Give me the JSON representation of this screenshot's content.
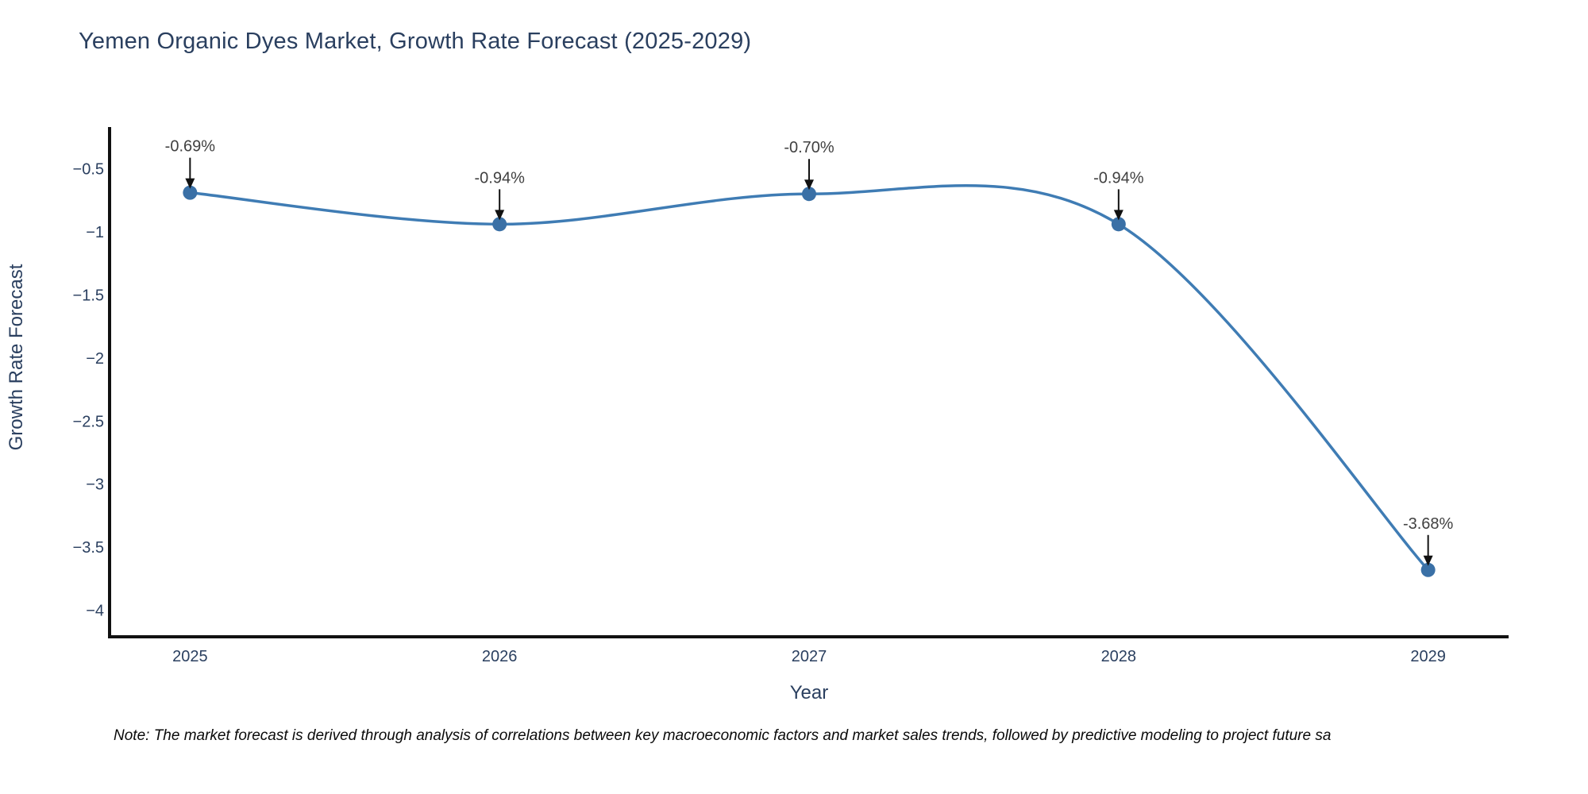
{
  "page": {
    "note": "Note: The market forecast is derived through analysis of correlations between key macroeconomic factors and market sales trends, followed by predictive modeling to project future sa"
  },
  "chart_data": {
    "type": "line",
    "title": "Yemen Organic Dyes Market, Growth Rate Forecast (2025-2029)",
    "xlabel": "Year",
    "ylabel": "Growth Rate Forecast",
    "x": [
      2025,
      2026,
      2027,
      2028,
      2029
    ],
    "series": [
      {
        "name": "Growth Rate Forecast",
        "values": [
          -0.69,
          -0.94,
          -0.7,
          -0.94,
          -3.68
        ]
      }
    ],
    "point_labels": [
      "-0.69%",
      "-0.94%",
      "-0.70%",
      "-0.94%",
      "-3.68%"
    ],
    "x_tick_labels": [
      "2025",
      "2026",
      "2027",
      "2028",
      "2029"
    ],
    "y_ticks": [
      -0.5,
      -1,
      -1.5,
      -2,
      -2.5,
      -3,
      -3.5,
      -4
    ],
    "y_tick_labels": [
      "−0.5",
      "−1",
      "−1.5",
      "−2",
      "−2.5",
      "−3",
      "−3.5",
      "−4"
    ],
    "x_range": [
      2024.74,
      2029.26
    ],
    "y_range": [
      -4.21,
      -0.17
    ],
    "line_shape": "spline",
    "grid": false,
    "legend": "none",
    "colors": {
      "line": "#3f7cb4",
      "marker": "#3a70a6",
      "axis": "#111111",
      "arrow": "#111111",
      "text": "#2a3f5f",
      "annotation": "#404040",
      "note": "#0a0a0a",
      "background": "#ffffff"
    }
  }
}
